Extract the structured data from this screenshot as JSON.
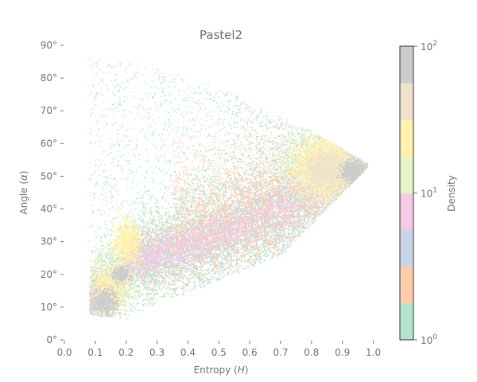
{
  "chart_data": {
    "type": "heatmap",
    "title": "Pastel2",
    "xlabel": "Entropy (H)",
    "ylabel": "Angle (α)",
    "xlim": [
      0.0,
      1.05
    ],
    "ylim": [
      0,
      90
    ],
    "x_ticks": [
      "0.0",
      "0.1",
      "0.2",
      "0.3",
      "0.4",
      "0.5",
      "0.6",
      "0.7",
      "0.8",
      "0.9",
      "1.0"
    ],
    "y_ticks": [
      "0°",
      "10°",
      "20°",
      "30°",
      "40°",
      "50°",
      "60°",
      "70°",
      "80°",
      "90°"
    ],
    "grid": false,
    "colorbar": {
      "label": "Density",
      "scale": "log",
      "range": [
        1,
        100
      ],
      "tick_labels": [
        "10^0",
        "10^1",
        "10^2"
      ],
      "colormap": "Pastel2",
      "colors": [
        "#b3e2cd",
        "#fdcdac",
        "#cbd5e8",
        "#f4cae4",
        "#e6f5c9",
        "#fff2ae",
        "#f1e2cc",
        "#cccccc"
      ]
    },
    "density_regions": [
      {
        "level": 1,
        "description": "sparse scatter",
        "x_range": [
          0.05,
          0.97
        ],
        "y_range": [
          5,
          88
        ]
      },
      {
        "level": 2,
        "center": [
          0.55,
          45
        ],
        "extent": "main upper band"
      },
      {
        "level": 3,
        "center": [
          0.6,
          42
        ],
        "extent": "middle band"
      },
      {
        "level": 5,
        "center": [
          0.82,
          55
        ],
        "extent": "right lobe"
      },
      {
        "level": 6,
        "center": [
          0.83,
          53
        ],
        "extent": "right core"
      },
      {
        "level": 8,
        "center": [
          0.93,
          52
        ],
        "extent": "peak near H=0.93"
      },
      {
        "level": 8,
        "center": [
          0.13,
          12
        ],
        "extent": "peak near H=0.13"
      },
      {
        "level": 8,
        "center": [
          0.18,
          20
        ],
        "extent": "peak near H=0.18"
      },
      {
        "level": 6,
        "center": [
          0.2,
          30
        ],
        "extent": "lower-left lobe"
      }
    ]
  }
}
